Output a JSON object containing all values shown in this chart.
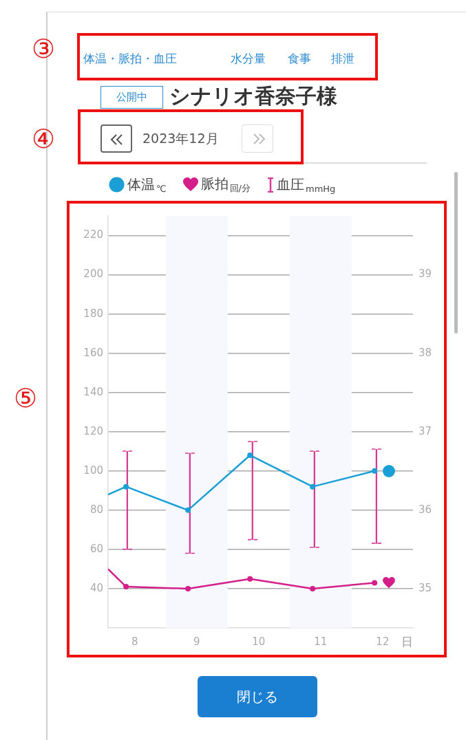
{
  "chart_data": {
    "type": "line",
    "title": "シナリオ香奈子様",
    "subtitle": "2023年12月",
    "xlabel": "日",
    "annotations": [
      "体温・脈拍・血圧",
      "水分量",
      "食事",
      "排泄",
      "公開中",
      "③",
      "④",
      "⑤",
      "閉じる"
    ],
    "xlim": [
      7.57,
      12.49
    ],
    "xticks": [
      8,
      9,
      10,
      11,
      12
    ],
    "ylim": [
      20,
      230
    ],
    "yticks": [
      40,
      60,
      80,
      100,
      120,
      140,
      160,
      180,
      200,
      220
    ],
    "y2lim": [
      34.5,
      39.75
    ],
    "y2ticks": [
      35,
      36,
      37,
      38,
      39
    ],
    "series": [
      {
        "name": "体温$_{℃}$",
        "axis": "y2",
        "color": "#1a9fd6",
        "x": [
          7.57,
          7.86,
          8.86,
          9.86,
          10.87,
          11.87
        ],
        "values": [
          36.2,
          36.3,
          36.0,
          36.7,
          36.3,
          36.5
        ]
      },
      {
        "name": "脈拍$_{回/分}$",
        "color": "#d41f8a",
        "x": [
          7.57,
          7.86,
          8.86,
          9.86,
          10.87,
          11.87
        ],
        "values": [
          50,
          41,
          40,
          45,
          40,
          43
        ]
      },
      {
        "name": "血圧$_{mmHg}$",
        "type": "bar",
        "color": "#d63a94",
        "x": [
          7.88,
          8.89,
          9.9,
          10.9,
          11.9
        ],
        "base": [
          60,
          58,
          65,
          61,
          63
        ],
        "values": [
          50,
          51,
          50,
          49,
          48
        ]
      }
    ],
    "bands": [
      {
        "axis": "x",
        "from": 8.5,
        "to": 9.5,
        "color": "#f6f8fd"
      },
      {
        "axis": "x",
        "from": 10.5,
        "to": 11.5,
        "color": "#f6f8fd"
      }
    ],
    "grid": "y",
    "legend": "top",
    "marker": "circle"
  }
}
